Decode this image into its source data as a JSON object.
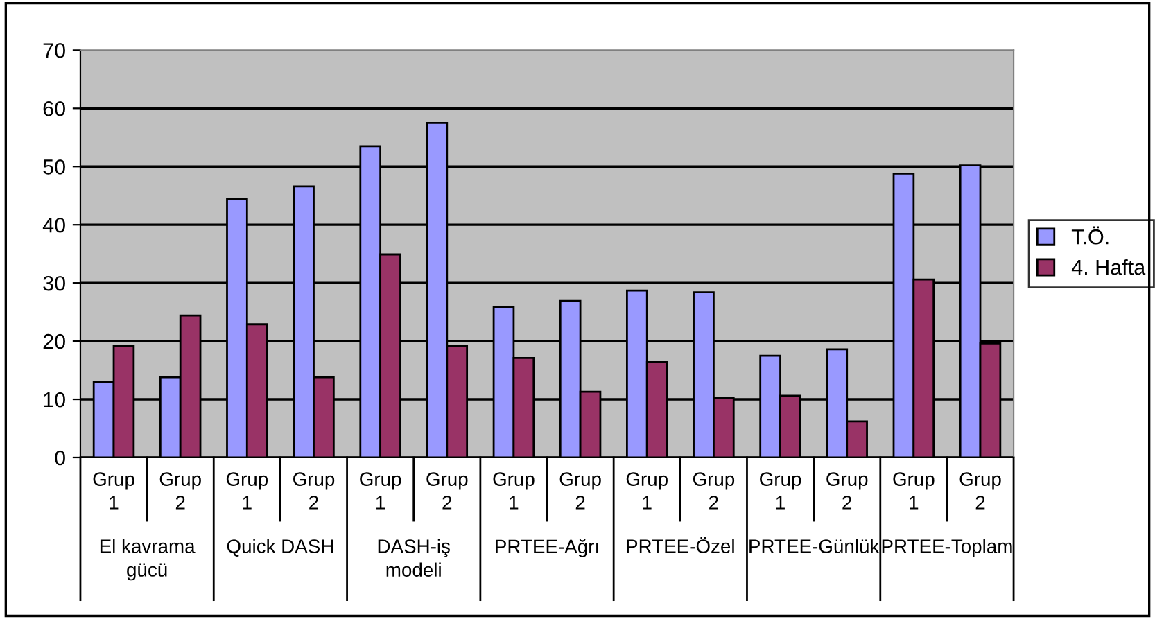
{
  "chart_data": {
    "type": "bar",
    "categories": [
      "Grup 1",
      "Grup 2",
      "Grup 1",
      "Grup 2",
      "Grup 1",
      "Grup 2",
      "Grup 1",
      "Grup 2",
      "Grup 1",
      "Grup 2",
      "Grup 1",
      "Grup 2",
      "Grup 1",
      "Grup 2"
    ],
    "series": [
      {
        "name": "T.Ö.",
        "color": "#9999ff",
        "values": [
          13.0,
          13.8,
          44.4,
          46.6,
          53.5,
          57.5,
          25.9,
          26.9,
          28.7,
          28.4,
          17.5,
          18.6,
          48.8,
          50.2
        ]
      },
      {
        "name": "4. Hafta",
        "color": "#993366",
        "values": [
          19.2,
          24.4,
          22.9,
          13.8,
          34.9,
          19.2,
          17.1,
          11.3,
          16.4,
          10.2,
          10.6,
          6.2,
          30.6,
          19.6
        ]
      }
    ],
    "annotations": [
      "El kavrama gücü",
      "Quick DASH",
      "DASH-iş modeli",
      "PRTEE-Ağrı",
      "PRTEE-Özel",
      "PRTEE-Günlük",
      "PRTEE-Toplam"
    ],
    "ylim": [
      0,
      70
    ],
    "yticks": [
      0,
      10,
      20,
      30,
      40,
      50,
      60,
      70
    ],
    "grid": "y",
    "legend": "right"
  }
}
